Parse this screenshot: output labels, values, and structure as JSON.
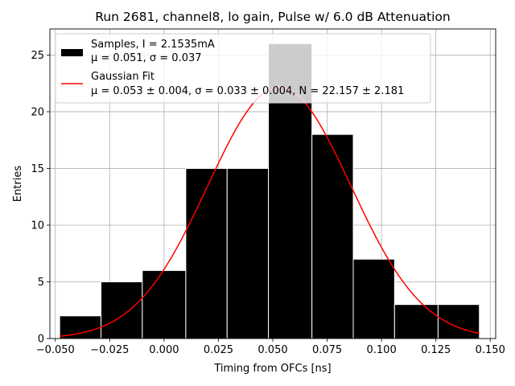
{
  "chart_data": {
    "type": "bar",
    "title": "Run 2681, channel8, lo gain, Pulse w/ 6.0 dB Attenuation",
    "xlabel": "Timing from OFCs [ns]",
    "ylabel": "Entries",
    "xlim": [
      -0.0525,
      0.1525
    ],
    "ylim": [
      0,
      27.3
    ],
    "xticks": [
      -0.05,
      -0.025,
      0.0,
      0.025,
      0.05,
      0.075,
      0.1,
      0.125,
      0.15
    ],
    "xtick_labels": [
      "−0.050",
      "−0.025",
      "0.000",
      "0.025",
      "0.050",
      "0.075",
      "0.100",
      "0.125",
      "0.150"
    ],
    "yticks": [
      0,
      5,
      10,
      15,
      20,
      25
    ],
    "ytick_labels": [
      "0",
      "5",
      "10",
      "15",
      "20",
      "25"
    ],
    "grid": true,
    "legend_position": "top-left",
    "histogram": {
      "bin_edges": [
        -0.048,
        -0.029,
        -0.01,
        0.01,
        0.029,
        0.048,
        0.068,
        0.087,
        0.106,
        0.126,
        0.145
      ],
      "values": [
        2,
        5,
        6,
        15,
        15,
        26,
        18,
        7,
        3,
        3
      ],
      "color": "#000000",
      "edge_color": "#ffffff"
    },
    "fit": {
      "type": "gaussian",
      "mu": 0.053,
      "sigma": 0.033,
      "N": 22.157,
      "x_range": [
        -0.048,
        0.145
      ],
      "color": "#ff0000"
    },
    "legend": {
      "entries": [
        {
          "symbol": "patch",
          "color": "#000000",
          "line1": "Samples, I = 2.1535mA",
          "line2": "μ = 0.051, σ = 0.037"
        },
        {
          "symbol": "line",
          "color": "#ff0000",
          "line1": "Gaussian Fit",
          "line2": "μ = 0.053 ± 0.004, σ = 0.033 ± 0.004, N = 22.157 ± 2.181"
        }
      ]
    }
  }
}
